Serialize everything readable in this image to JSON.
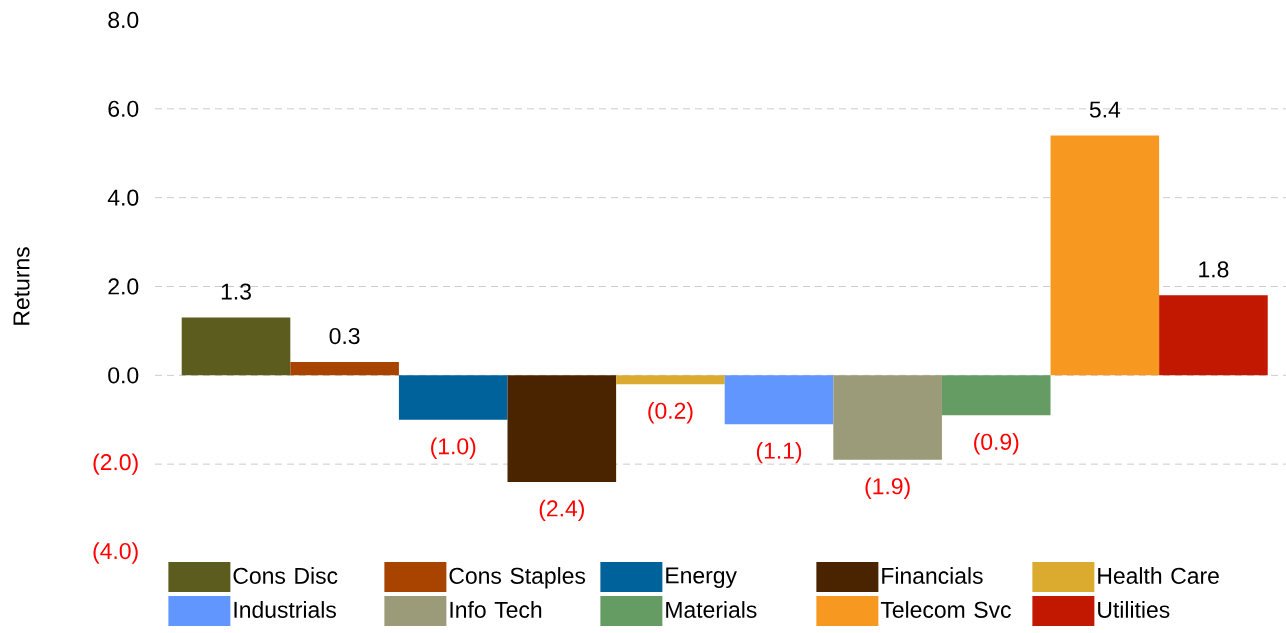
{
  "chart_data": {
    "type": "bar",
    "ylabel": "Returns",
    "categories": [
      null,
      null,
      null,
      null,
      null,
      null,
      null,
      null,
      null,
      null
    ],
    "series": [
      {
        "name": "Cons Disc",
        "color": "#5c5c1f",
        "values": [
          1.3,
          null,
          null,
          null,
          null,
          null,
          null,
          null,
          null,
          null
        ],
        "value_labels": [
          "1.3",
          null,
          null,
          null,
          null,
          null,
          null,
          null,
          null,
          null
        ]
      },
      {
        "name": "Cons Staples",
        "color": "#a84300",
        "values": [
          null,
          0.3,
          null,
          null,
          null,
          null,
          null,
          null,
          null,
          null
        ],
        "value_labels": [
          null,
          "0.3",
          null,
          null,
          null,
          null,
          null,
          null,
          null,
          null
        ]
      },
      {
        "name": "Energy",
        "color": "#00629b",
        "values": [
          null,
          null,
          -1.0,
          null,
          null,
          null,
          null,
          null,
          null,
          null
        ],
        "value_labels": [
          null,
          null,
          "(1.0)",
          null,
          null,
          null,
          null,
          null,
          null,
          null
        ]
      },
      {
        "name": "Financials",
        "color": "#4a2300",
        "values": [
          null,
          null,
          null,
          -2.4,
          null,
          null,
          null,
          null,
          null,
          null
        ],
        "value_labels": [
          null,
          null,
          null,
          "(2.4)",
          null,
          null,
          null,
          null,
          null,
          null
        ]
      },
      {
        "name": "Health Care",
        "color": "#dbab30",
        "values": [
          null,
          null,
          null,
          null,
          -0.2,
          null,
          null,
          null,
          null,
          null
        ],
        "value_labels": [
          null,
          null,
          null,
          null,
          "(0.2)",
          null,
          null,
          null,
          null,
          null
        ]
      },
      {
        "name": "Industrials",
        "color": "#6196ff",
        "values": [
          null,
          null,
          null,
          null,
          null,
          -1.1,
          null,
          null,
          null,
          null
        ],
        "value_labels": [
          null,
          null,
          null,
          null,
          null,
          "(1.1)",
          null,
          null,
          null,
          null
        ]
      },
      {
        "name": "Info Tech",
        "color": "#9b9a79",
        "values": [
          null,
          null,
          null,
          null,
          null,
          null,
          -1.9,
          null,
          null,
          null
        ],
        "value_labels": [
          null,
          null,
          null,
          null,
          null,
          null,
          "(1.9)",
          null,
          null,
          null
        ]
      },
      {
        "name": "Materials",
        "color": "#649c64",
        "values": [
          null,
          null,
          null,
          null,
          null,
          null,
          null,
          -0.9,
          null,
          null
        ],
        "value_labels": [
          null,
          null,
          null,
          null,
          null,
          null,
          null,
          "(0.9)",
          null,
          null
        ]
      },
      {
        "name": "Telecom Svc",
        "color": "#f79920",
        "values": [
          null,
          null,
          null,
          null,
          null,
          null,
          null,
          null,
          5.4,
          null
        ],
        "value_labels": [
          null,
          null,
          null,
          null,
          null,
          null,
          null,
          null,
          "5.4",
          null
        ]
      },
      {
        "name": "Utilities",
        "color": "#c21700",
        "values": [
          null,
          null,
          null,
          null,
          null,
          null,
          null,
          null,
          null,
          1.8
        ],
        "value_labels": [
          null,
          null,
          null,
          null,
          null,
          null,
          null,
          null,
          null,
          "1.8"
        ]
      }
    ],
    "ylim": [
      -4,
      8
    ],
    "yticks": [
      {
        "value": -4,
        "label": "(4.0)"
      },
      {
        "value": -2,
        "label": "(2.0)"
      },
      {
        "value": 0,
        "label": "0.0"
      },
      {
        "value": 2,
        "label": "2.0"
      },
      {
        "value": 4,
        "label": "4.0"
      },
      {
        "value": 6,
        "label": "6.0"
      },
      {
        "value": 8,
        "label": "8.0"
      }
    ],
    "grid": "y",
    "legend": "bottom"
  }
}
